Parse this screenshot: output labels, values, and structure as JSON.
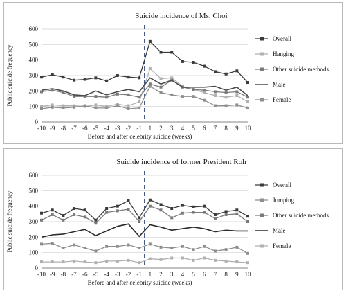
{
  "chart_data": [
    {
      "type": "line",
      "title": "Suicide incidence of Ms. Choi",
      "xlabel": "Before and after celebrity suicide (weeks)",
      "ylabel": "Public suicide frequency",
      "x": [
        "-10",
        "-9",
        "-8",
        "-7",
        "-6",
        "-5",
        "-4",
        "-3",
        "-2",
        "-1",
        "1",
        "2",
        "3",
        "4",
        "5",
        "6",
        "7",
        "8",
        "9",
        "10"
      ],
      "ylim": [
        0,
        600
      ],
      "yticks": [
        "0",
        "100",
        "200",
        "300",
        "400",
        "500",
        "600"
      ],
      "grid": true,
      "legend_position": "right",
      "reference_line_after_index": 9,
      "series": [
        {
          "name": "Overall",
          "color": "#3a3a3a",
          "marker": "square",
          "values": [
            290,
            305,
            290,
            270,
            275,
            285,
            265,
            300,
            290,
            285,
            520,
            450,
            450,
            390,
            385,
            360,
            325,
            310,
            330,
            255
          ]
        },
        {
          "name": "Hanging",
          "color": "#b0b0b0",
          "marker": "square",
          "values": [
            100,
            110,
            105,
            105,
            100,
            110,
            100,
            115,
            105,
            130,
            345,
            280,
            285,
            230,
            210,
            190,
            170,
            160,
            170,
            130
          ]
        },
        {
          "name": "Other suicide methods",
          "color": "#7a7a7a",
          "marker": "square",
          "values": [
            195,
            205,
            190,
            165,
            165,
            165,
            160,
            180,
            175,
            160,
            245,
            225,
            270,
            225,
            210,
            205,
            195,
            190,
            195,
            160
          ]
        },
        {
          "name": "Male",
          "color": "#4a4a4a",
          "marker": "none",
          "values": [
            205,
            215,
            200,
            175,
            170,
            200,
            175,
            195,
            210,
            195,
            285,
            245,
            270,
            225,
            225,
            225,
            230,
            205,
            225,
            170
          ]
        },
        {
          "name": "Female",
          "color": "#8e8e8e",
          "marker": "square",
          "values": [
            85,
            95,
            90,
            95,
            105,
            90,
            90,
            105,
            85,
            90,
            230,
            190,
            175,
            165,
            165,
            140,
            105,
            105,
            110,
            90
          ]
        }
      ]
    },
    {
      "type": "line",
      "title": "Suicide incidence of former President Roh",
      "xlabel": "Before and after celebrity suicide (weeks)",
      "ylabel": "Public suicide frequency",
      "x": [
        "-10",
        "-9",
        "-8",
        "-7",
        "-6",
        "-5",
        "-4",
        "-3",
        "-2",
        "-1",
        "1",
        "2",
        "3",
        "4",
        "5",
        "6",
        "7",
        "8",
        "9",
        "10"
      ],
      "ylim": [
        0,
        600
      ],
      "yticks": [
        "0",
        "100",
        "200",
        "300",
        "400",
        "500",
        "600"
      ],
      "grid": true,
      "legend_position": "right",
      "reference_line_after_index": 9,
      "series": [
        {
          "name": "Overall",
          "color": "#3a3a3a",
          "marker": "square",
          "values": [
            355,
            375,
            340,
            385,
            375,
            310,
            385,
            400,
            435,
            325,
            440,
            410,
            385,
            405,
            395,
            400,
            345,
            365,
            375,
            335
          ]
        },
        {
          "name": "Jumping",
          "color": "#8e8e8e",
          "marker": "square",
          "values": [
            155,
            160,
            130,
            150,
            130,
            110,
            140,
            140,
            150,
            130,
            155,
            135,
            130,
            140,
            120,
            140,
            110,
            120,
            135,
            95
          ]
        },
        {
          "name": "Other suicide methods",
          "color": "#7a7a7a",
          "marker": "square",
          "values": [
            310,
            345,
            310,
            345,
            330,
            290,
            360,
            370,
            380,
            300,
            400,
            375,
            325,
            355,
            360,
            360,
            320,
            345,
            350,
            300
          ]
        },
        {
          "name": "Male",
          "color": "#2a2a2a",
          "marker": "none",
          "values": [
            200,
            215,
            220,
            235,
            250,
            210,
            240,
            270,
            285,
            205,
            280,
            265,
            245,
            255,
            265,
            255,
            235,
            245,
            240,
            240
          ]
        },
        {
          "name": "Female",
          "color": "#b0b0b0",
          "marker": "square",
          "values": [
            40,
            40,
            40,
            45,
            40,
            35,
            45,
            45,
            50,
            35,
            60,
            55,
            65,
            65,
            50,
            65,
            50,
            45,
            40,
            35
          ]
        }
      ]
    }
  ]
}
